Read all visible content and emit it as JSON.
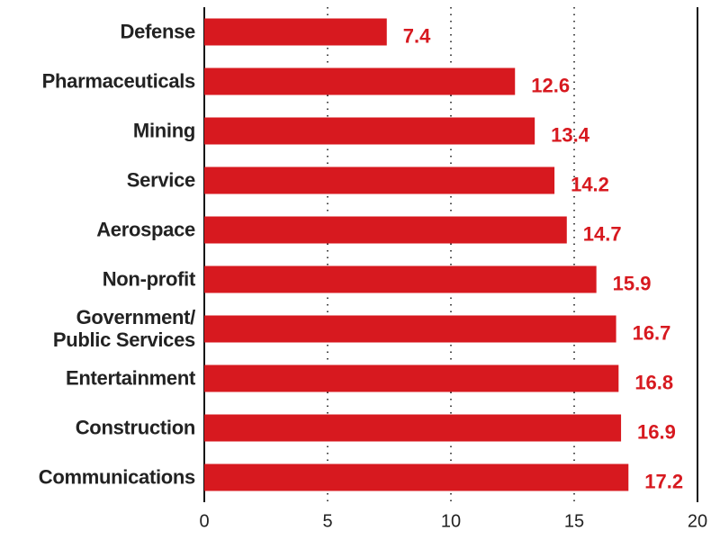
{
  "chart_data": {
    "type": "bar",
    "orientation": "horizontal",
    "categories": [
      "Defense",
      "Pharmaceuticals",
      "Mining",
      "Service",
      "Aerospace",
      "Non-profit",
      "Government/\nPublic Services",
      "Entertainment",
      "Construction",
      "Communications"
    ],
    "values": [
      7.4,
      12.6,
      13.4,
      14.2,
      14.7,
      15.9,
      16.7,
      16.8,
      16.9,
      17.2
    ],
    "color": "#d7191f",
    "xlim": [
      0,
      20
    ],
    "xticks": [
      0,
      5,
      10,
      15,
      20
    ],
    "grid": true
  }
}
